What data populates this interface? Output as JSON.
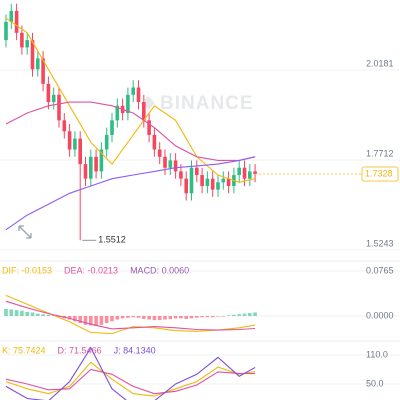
{
  "watermark": "BINANCE",
  "chart_data": [
    {
      "type": "candlestick",
      "open": [
        2.1,
        2.15,
        2.18,
        2.12,
        2.08,
        2.1,
        2.02,
        2.05,
        1.98,
        1.93,
        1.95,
        1.88,
        1.85,
        1.8,
        1.83,
        1.76,
        1.72,
        1.78,
        1.74,
        1.8,
        1.84,
        1.88,
        1.92,
        1.9,
        1.95,
        1.97,
        1.93,
        1.88,
        1.84,
        1.8,
        1.78,
        1.75,
        1.77,
        1.74,
        1.72,
        1.68,
        1.75,
        1.73,
        1.7,
        1.72,
        1.69,
        1.71,
        1.72,
        1.7,
        1.73,
        1.75,
        1.72,
        1.74
      ],
      "high": [
        2.17,
        2.2,
        2.2,
        2.14,
        2.12,
        2.12,
        2.07,
        2.07,
        2.0,
        1.97,
        1.97,
        1.9,
        1.87,
        1.85,
        1.85,
        1.78,
        1.8,
        1.8,
        1.82,
        1.86,
        1.9,
        1.94,
        1.94,
        1.97,
        1.99,
        1.99,
        1.95,
        1.9,
        1.86,
        1.82,
        1.8,
        1.79,
        1.79,
        1.76,
        1.74,
        1.77,
        1.77,
        1.75,
        1.74,
        1.74,
        1.73,
        1.74,
        1.74,
        1.75,
        1.77,
        1.77,
        1.76,
        1.76
      ],
      "low": [
        2.08,
        2.13,
        2.1,
        2.06,
        2.06,
        2.0,
        2.0,
        1.96,
        1.91,
        1.91,
        1.86,
        1.83,
        1.78,
        1.78,
        1.5512,
        1.7,
        1.7,
        1.72,
        1.72,
        1.78,
        1.82,
        1.86,
        1.88,
        1.88,
        1.93,
        1.91,
        1.86,
        1.82,
        1.78,
        1.76,
        1.73,
        1.73,
        1.72,
        1.7,
        1.66,
        1.66,
        1.71,
        1.68,
        1.68,
        1.67,
        1.67,
        1.69,
        1.68,
        1.68,
        1.71,
        1.7,
        1.7,
        1.71
      ],
      "close": [
        2.15,
        2.18,
        2.12,
        2.08,
        2.1,
        2.02,
        2.05,
        1.98,
        1.93,
        1.95,
        1.88,
        1.85,
        1.8,
        1.83,
        1.76,
        1.72,
        1.78,
        1.74,
        1.8,
        1.84,
        1.88,
        1.92,
        1.9,
        1.95,
        1.97,
        1.93,
        1.88,
        1.84,
        1.8,
        1.78,
        1.75,
        1.77,
        1.74,
        1.72,
        1.68,
        1.75,
        1.73,
        1.7,
        1.72,
        1.69,
        1.71,
        1.72,
        1.7,
        1.73,
        1.75,
        1.72,
        1.74,
        1.7328
      ],
      "up_color": "#2ebd85",
      "down_color": "#f6465d",
      "ylim": [
        1.497,
        2.21
      ],
      "yticks": [
        2.0181,
        1.7712,
        1.5243
      ],
      "series": [
        {
          "color": "#f0b90b",
          "x": [
            0,
            4,
            8,
            12,
            16,
            20,
            24,
            28,
            32,
            36,
            40,
            44,
            47
          ],
          "values": [
            2.16,
            2.12,
            2.02,
            1.92,
            1.82,
            1.76,
            1.84,
            1.92,
            1.88,
            1.78,
            1.73,
            1.71,
            1.72
          ]
        },
        {
          "color": "#e052a0",
          "x": [
            0,
            4,
            8,
            12,
            16,
            20,
            24,
            28,
            32,
            36,
            40,
            44,
            47
          ],
          "values": [
            1.87,
            1.9,
            1.92,
            1.93,
            1.93,
            1.92,
            1.9,
            1.86,
            1.81,
            1.78,
            1.77,
            1.77,
            1.78
          ]
        },
        {
          "color": "#8b5cf6",
          "x": [
            0,
            4,
            8,
            12,
            16,
            20,
            24,
            28,
            32,
            36,
            40,
            44,
            47
          ],
          "values": [
            1.58,
            1.62,
            1.65,
            1.68,
            1.7,
            1.72,
            1.73,
            1.74,
            1.75,
            1.755,
            1.76,
            1.77,
            1.78
          ]
        }
      ]
    },
    {
      "type": "macd",
      "values": [
        0.012,
        0.011,
        0.01,
        0.009,
        0.007,
        0.006,
        0.004,
        0.003,
        0.002,
        0.001,
        -0.002,
        -0.004,
        -0.006,
        -0.009,
        -0.012,
        -0.015,
        -0.016,
        -0.017,
        -0.015,
        -0.012,
        -0.009,
        -0.006,
        -0.004,
        -0.003,
        -0.002,
        -0.003,
        -0.005,
        -0.006,
        -0.007,
        -0.007,
        -0.006,
        -0.005,
        -0.004,
        -0.004,
        -0.005,
        -0.004,
        -0.003,
        -0.002,
        -0.002,
        -0.002,
        -0.001,
        -0.001,
        0.001,
        0.002,
        0.003,
        0.004,
        0.005,
        0.006
      ],
      "up_color": "#2ebd85",
      "down_color": "#f6465d",
      "ylim": [
        -0.0408,
        0.0918
      ],
      "yticks": [
        0.0765,
        {
          "value": 0,
          "label": "0.0000"
        }
      ],
      "series": [
        {
          "name": "DIF: -0.0153",
          "color": "#f0b90b",
          "x": [
            0,
            4,
            8,
            12,
            16,
            20,
            24,
            28,
            32,
            36,
            40,
            44,
            47
          ],
          "values": [
            0.035,
            0.02,
            0.005,
            -0.01,
            -0.028,
            -0.03,
            -0.018,
            -0.02,
            -0.025,
            -0.026,
            -0.024,
            -0.02,
            -0.0153
          ]
        },
        {
          "name": "DEA: -0.0213",
          "color": "#e052a0",
          "x": [
            0,
            4,
            8,
            12,
            16,
            20,
            24,
            28,
            32,
            36,
            40,
            44,
            47
          ],
          "values": [
            0.025,
            0.014,
            0.004,
            -0.004,
            -0.014,
            -0.022,
            -0.02,
            -0.018,
            -0.02,
            -0.023,
            -0.024,
            -0.023,
            -0.0213
          ]
        },
        {
          "name": "MACD: 0.0060",
          "color": "#9b59b6"
        }
      ]
    },
    {
      "type": "line",
      "ylim": [
        16.9,
        136.9
      ],
      "yticks": [
        {
          "value": 110,
          "label": "110.0"
        },
        {
          "value": 50,
          "label": "50.0"
        }
      ],
      "series": [
        {
          "name": "K: 75.7424",
          "color": "#f0b90b",
          "x": [
            0,
            4,
            8,
            12,
            16,
            20,
            24,
            28,
            32,
            36,
            40,
            44,
            47
          ],
          "values": [
            55,
            40,
            30,
            45,
            95,
            60,
            30,
            25,
            40,
            55,
            85,
            70,
            75.7424
          ]
        },
        {
          "name": "D: 71.5466",
          "color": "#e052a0",
          "x": [
            0,
            4,
            8,
            12,
            16,
            20,
            24,
            28,
            32,
            36,
            40,
            44,
            47
          ],
          "values": [
            60,
            50,
            38,
            40,
            80,
            70,
            45,
            30,
            35,
            48,
            75,
            72,
            71.5466
          ]
        },
        {
          "name": "J: 84.1340",
          "color": "#7b4fd6",
          "x": [
            0,
            4,
            8,
            12,
            16,
            20,
            24,
            28,
            32,
            36,
            40,
            44,
            47
          ],
          "values": [
            45,
            20,
            15,
            55,
            125,
            40,
            5,
            15,
            50,
            70,
            105,
            66,
            84.134
          ]
        }
      ]
    }
  ]
}
